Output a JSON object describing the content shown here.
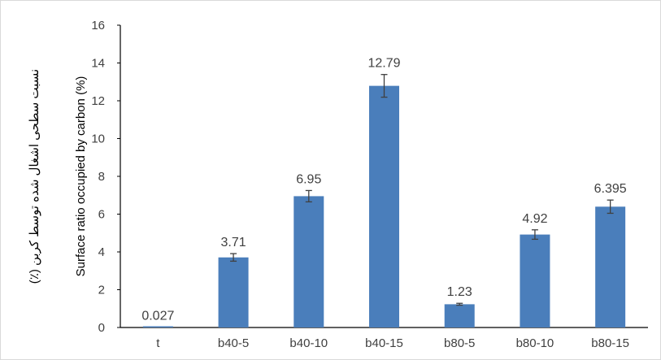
{
  "chart_data": {
    "type": "bar",
    "title": "",
    "xlabel": "",
    "ylabel": "Surface ratio occupied by carbon (%)",
    "ylabel_fa": "نسبت سطحی اشغال شده توسط کربن (٪)",
    "ylim": [
      0,
      16
    ],
    "yticks": [
      0,
      2,
      4,
      6,
      8,
      10,
      12,
      14,
      16
    ],
    "categories": [
      "t",
      "b40-5",
      "b40-10",
      "b40-15",
      "b80-5",
      "b80-10",
      "b80-15"
    ],
    "values": [
      0.027,
      3.71,
      6.95,
      12.79,
      1.23,
      4.92,
      6.395
    ],
    "data_labels": [
      "0.027",
      "3.71",
      "6.95",
      "12.79",
      "1.23",
      "4.92",
      "6.395"
    ],
    "error": [
      0.0,
      0.2,
      0.3,
      0.6,
      0.05,
      0.25,
      0.35
    ],
    "bar_color": "#4a7ebb",
    "grid": false,
    "legend": "none"
  }
}
